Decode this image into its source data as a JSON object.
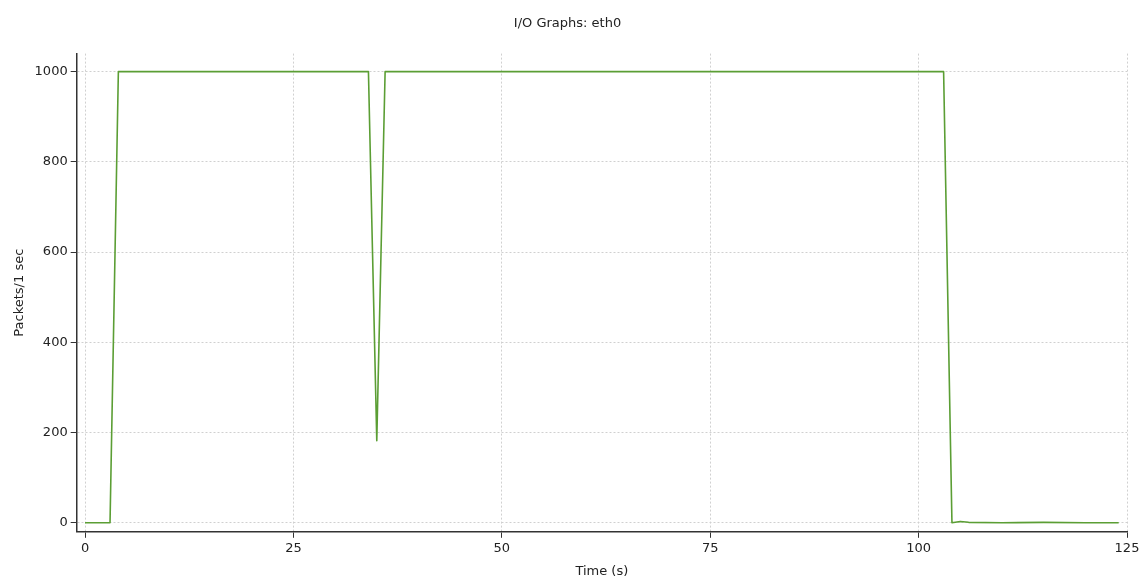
{
  "chart_data": {
    "type": "line",
    "title": "I/O Graphs: eth0",
    "xlabel": "Time (s)",
    "ylabel": "Packets/1 sec",
    "x": [
      0,
      1,
      2,
      3,
      4,
      10,
      20,
      30,
      34,
      35,
      36,
      40,
      50,
      60,
      70,
      80,
      90,
      100,
      103,
      104,
      105,
      106,
      110,
      115,
      120,
      124
    ],
    "series": [
      {
        "color": "#5b9e34",
        "values": [
          0,
          0,
          0,
          0,
          1000,
          1000,
          1000,
          1000,
          1000,
          182,
          1000,
          1000,
          1000,
          1000,
          1000,
          1000,
          1000,
          1000,
          1000,
          0,
          3,
          1,
          0,
          1,
          0,
          0
        ]
      }
    ],
    "xlim": [
      -1,
      125
    ],
    "xticks": [
      0,
      25,
      50,
      75,
      100,
      125
    ],
    "ylim": [
      -20,
      1040
    ],
    "yticks": [
      0,
      200,
      400,
      600,
      800,
      1000
    ],
    "grid": true,
    "legend": false,
    "marker": "none",
    "line_style": "solid"
  }
}
